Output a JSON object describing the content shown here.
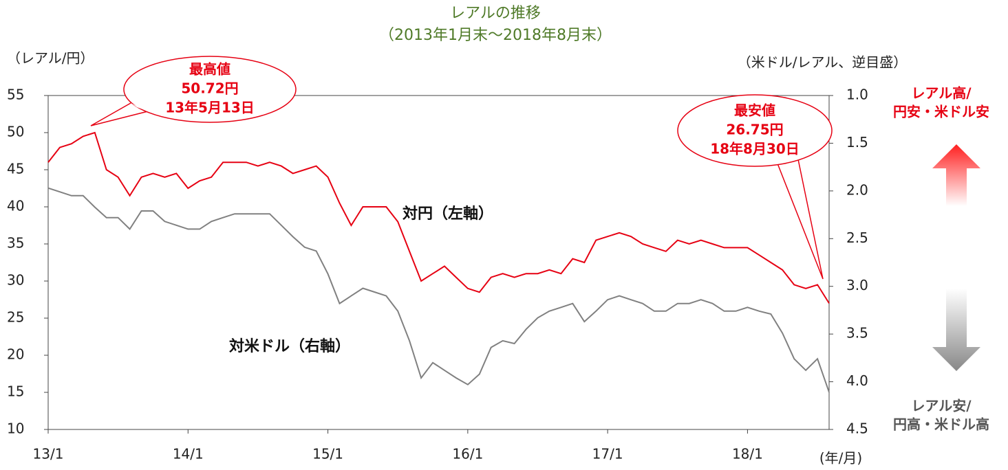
{
  "chart_data": {
    "type": "line",
    "title": "レアルの推移",
    "subtitle": "（2013年1月末～2018年8月末）",
    "y_label": "（レアル/円）",
    "y2_label": "（米ドル/レアル、逆目盛）",
    "x_label": "(年/月)",
    "categories": [
      "13/1",
      null,
      null,
      null,
      null,
      null,
      null,
      null,
      null,
      null,
      null,
      null,
      "14/1",
      null,
      null,
      null,
      null,
      null,
      null,
      null,
      null,
      null,
      null,
      null,
      "15/1",
      null,
      null,
      null,
      null,
      null,
      null,
      null,
      null,
      null,
      null,
      null,
      "16/1",
      null,
      null,
      null,
      null,
      null,
      null,
      null,
      null,
      null,
      null,
      null,
      "17/1",
      null,
      null,
      null,
      null,
      null,
      null,
      null,
      null,
      null,
      null,
      null,
      "18/1",
      null,
      null,
      null,
      null,
      null,
      null,
      null
    ],
    "series": [
      {
        "name": "対円（左軸）",
        "color": "#e60012",
        "axis": "y",
        "values": [
          46,
          48,
          48.5,
          49.5,
          50,
          45,
          44,
          41.5,
          44,
          44.5,
          44,
          44.5,
          42.5,
          43.5,
          44,
          46,
          46,
          46,
          45.5,
          46,
          45.5,
          44.5,
          45,
          45.5,
          44,
          40.5,
          37.5,
          40,
          40,
          40,
          38,
          34,
          30,
          31,
          32,
          30.5,
          29,
          28.5,
          30.5,
          31,
          30.5,
          31,
          31,
          31.5,
          31,
          33,
          32.5,
          35.5,
          36,
          36.5,
          36,
          35,
          34.5,
          34,
          35.5,
          35,
          35.5,
          35,
          34.5,
          34.5,
          34.5,
          33.5,
          32.5,
          31.5,
          29.5,
          29,
          29.5,
          27
        ]
      },
      {
        "name": "対米ドル（右軸）",
        "color": "#808080",
        "axis": "y2",
        "values": [
          1.97,
          2.01,
          2.05,
          2.05,
          2.17,
          2.28,
          2.28,
          2.4,
          2.21,
          2.21,
          2.32,
          2.36,
          2.4,
          2.4,
          2.32,
          2.28,
          2.24,
          2.24,
          2.24,
          2.24,
          2.36,
          2.48,
          2.59,
          2.63,
          2.87,
          3.18,
          3.1,
          3.02,
          3.06,
          3.1,
          3.26,
          3.57,
          3.96,
          3.8,
          3.88,
          3.96,
          4.03,
          3.92,
          3.64,
          3.57,
          3.6,
          3.45,
          3.33,
          3.26,
          3.22,
          3.18,
          3.37,
          3.26,
          3.14,
          3.1,
          3.14,
          3.18,
          3.26,
          3.26,
          3.18,
          3.18,
          3.14,
          3.18,
          3.26,
          3.26,
          3.22,
          3.26,
          3.29,
          3.49,
          3.76,
          3.88,
          3.76,
          4.11
        ]
      }
    ],
    "ylim": [
      10,
      55
    ],
    "yticks": [
      10,
      15,
      20,
      25,
      30,
      35,
      40,
      45,
      50,
      55
    ],
    "y2lim": [
      1,
      4.5
    ],
    "y2_inverted": true,
    "y2ticks": [
      {
        "value": 1,
        "label": "1.0"
      },
      1.5,
      {
        "value": 2,
        "label": "2.0"
      },
      2.5,
      {
        "value": 3,
        "label": "3.0"
      },
      3.5,
      {
        "value": 4,
        "label": "4.0"
      },
      4.5
    ],
    "annotations": [
      {
        "lines": [
          "最高値",
          "50.72円",
          "13年5月13日"
        ]
      },
      {
        "lines": [
          "最安値",
          "26.75円",
          "18年8月30日"
        ]
      }
    ],
    "side_labels": [
      {
        "lines": [
          "レアル高/",
          "円安・米ドル安"
        ]
      },
      {
        "lines": [
          "レアル安/",
          "円高・米ドル高"
        ]
      }
    ]
  }
}
